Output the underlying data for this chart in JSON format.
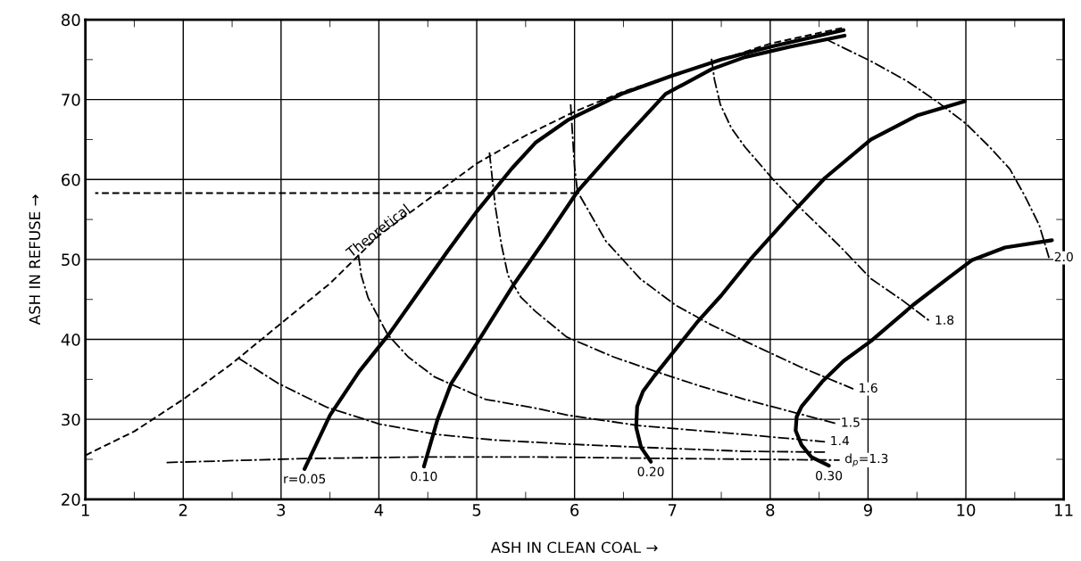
{
  "chart_data": {
    "type": "line",
    "xlabel": "ASH IN CLEAN COAL →",
    "ylabel": "ASH IN REFUSE →",
    "xlim": [
      1,
      11
    ],
    "ylim": [
      20,
      80
    ],
    "xticks": [
      1,
      {
        "value": 1.5,
        "label": null
      },
      2,
      {
        "value": 2.5,
        "label": null
      },
      3,
      {
        "value": 3.5,
        "label": null
      },
      4,
      {
        "value": 4.5,
        "label": null
      },
      5,
      {
        "value": 5.5,
        "label": null
      },
      6,
      {
        "value": 6.5,
        "label": null
      },
      7,
      {
        "value": 7.5,
        "label": null
      },
      8,
      {
        "value": 8.5,
        "label": null
      },
      9,
      {
        "value": 9.5,
        "label": null
      },
      10,
      {
        "value": 10.5,
        "label": null
      },
      11
    ],
    "yticks": [
      20,
      {
        "value": 25,
        "label": null
      },
      30,
      {
        "value": 35,
        "label": null
      },
      40,
      {
        "value": 45,
        "label": null
      },
      50,
      {
        "value": 55,
        "label": null
      },
      60,
      {
        "value": 65,
        "label": null
      },
      70,
      {
        "value": 75,
        "label": null
      },
      80
    ],
    "grid": true,
    "legend": false,
    "marker": "none",
    "annotations": [
      {
        "text": "Theoretical",
        "x": 4.0,
        "y": 53.5
      }
    ],
    "series": [
      {
        "color": "#000000",
        "line_style": "dashed",
        "x": [
          1,
          1.5,
          2,
          2.5,
          3,
          3.5,
          4,
          4.5,
          5,
          5.5,
          6,
          6.5,
          7,
          7.5,
          8,
          8.75
        ],
        "values": [
          25.5,
          28.5,
          32.5,
          37,
          42,
          47,
          53,
          57.5,
          62,
          65.5,
          68.5,
          71,
          73,
          75,
          77,
          79
        ]
      },
      {
        "color": "#000000",
        "line_style": "dashed",
        "x": [
          6.03,
          1.1
        ],
        "values": [
          58.3,
          58.3
        ]
      },
      {
        "name": "r=0.05",
        "color": "#000000",
        "line_style": "solid",
        "x": [
          3.24,
          3.5,
          3.8,
          4.1,
          4.4,
          4.7,
          5.0,
          5.36,
          5.6,
          5.94,
          6.5,
          7.0,
          7.5,
          8.0,
          8.75
        ],
        "values": [
          23.8,
          30.5,
          36,
          40.6,
          45.8,
          51,
          56,
          61.4,
          64.6,
          67.5,
          70.8,
          73,
          75,
          76.6,
          78.7
        ]
      },
      {
        "name": "0.10",
        "color": "#000000",
        "line_style": "solid",
        "x": [
          4.46,
          4.6,
          4.74,
          5.0,
          5.38,
          5.7,
          6.03,
          6.5,
          6.93,
          7.4,
          7.74,
          8.2,
          8.76
        ],
        "values": [
          24.1,
          30,
          34.5,
          39.5,
          46.9,
          52.5,
          58.5,
          65,
          70.7,
          73.8,
          75.3,
          76.6,
          78
        ]
      },
      {
        "name": "0.20",
        "color": "#000000",
        "line_style": "solid",
        "x": [
          6.78,
          6.68,
          6.63,
          6.64,
          6.7,
          6.82,
          7.1,
          7.25,
          7.5,
          7.81,
          8.2,
          8.56,
          9.03,
          9.5,
          9.99
        ],
        "values": [
          24.7,
          26.5,
          29,
          31.6,
          33.5,
          35.5,
          39.8,
          42.1,
          45.5,
          50.2,
          55.5,
          60.2,
          65,
          68,
          69.8
        ]
      },
      {
        "name": "0.30",
        "color": "#000000",
        "line_style": "solid",
        "x": [
          8.6,
          8.42,
          8.32,
          8.26,
          8.27,
          8.32,
          8.53,
          8.75,
          9.03,
          9.46,
          9.8,
          10.06,
          10.4,
          10.88
        ],
        "values": [
          24.2,
          25.3,
          26.8,
          28.6,
          30.3,
          31.6,
          34.7,
          37.3,
          39.8,
          44.3,
          47.5,
          49.9,
          51.5,
          52.4
        ]
      },
      {
        "name": "d$_{p}$=1.3",
        "color": "#000000",
        "line_style": "dashdot",
        "x": [
          1.83,
          3.26,
          4.5,
          5.6,
          7.0,
          8.71
        ],
        "values": [
          24.6,
          25.1,
          25.3,
          25.3,
          25.1,
          24.9
        ]
      },
      {
        "color": "#000000",
        "line_style": "dashdot",
        "x": [
          2.56,
          2.97,
          3.47,
          4.01,
          4.6,
          5.2,
          5.94,
          6.7,
          7.74,
          8.56
        ],
        "values": [
          37.7,
          34.5,
          31.5,
          29.4,
          28.1,
          27.4,
          26.9,
          26.5,
          26.0,
          25.9
        ]
      },
      {
        "name": "1.4",
        "color": "#000000",
        "line_style": "dashdot",
        "x": [
          3.79,
          3.82,
          3.89,
          4.09,
          4.3,
          4.57,
          5.09,
          5.6,
          5.94,
          6.67,
          7.74,
          8.56
        ],
        "values": [
          50.6,
          48,
          45.2,
          40.6,
          37.8,
          35.3,
          32.5,
          31.4,
          30.5,
          29.2,
          28.1,
          27.2
        ]
      },
      {
        "name": "1.5",
        "color": "#000000",
        "line_style": "dashdot",
        "x": [
          5.13,
          5.16,
          5.19,
          5.25,
          5.32,
          5.45,
          5.6,
          5.92,
          6.4,
          6.85,
          7.3,
          7.74,
          8.2,
          8.67
        ],
        "values": [
          63.4,
          60,
          56.6,
          52,
          48,
          45.3,
          43.5,
          40.3,
          37.8,
          35.9,
          34.1,
          32.5,
          31,
          29.5
        ]
      },
      {
        "name": "1.6",
        "color": "#000000",
        "line_style": "dashdot",
        "x": [
          5.96,
          6.0,
          6.03,
          6.32,
          6.67,
          7.03,
          7.4,
          7.74,
          8.3,
          8.85
        ],
        "values": [
          69.4,
          61.6,
          58.5,
          52.3,
          47.6,
          44.3,
          41.8,
          39.8,
          36.6,
          33.8
        ]
      },
      {
        "name": "1.8",
        "color": "#000000",
        "line_style": "dashdot",
        "x": [
          7.4,
          7.43,
          7.49,
          7.6,
          7.74,
          8.03,
          8.32,
          8.7,
          9.03,
          9.35,
          9.63
        ],
        "values": [
          75.1,
          72.5,
          69.4,
          66.5,
          64.1,
          60,
          56.3,
          51.8,
          47.6,
          44.9,
          42.3
        ]
      },
      {
        "name": "2.0",
        "color": "#000000",
        "line_style": "dashdot",
        "x": [
          8.56,
          9.03,
          9.4,
          9.7,
          10.0,
          10.24,
          10.45,
          10.6,
          10.75,
          10.85
        ],
        "values": [
          77.6,
          74.8,
          72.3,
          69.8,
          67,
          64.1,
          61.3,
          58,
          54.3,
          50.2
        ]
      }
    ]
  }
}
